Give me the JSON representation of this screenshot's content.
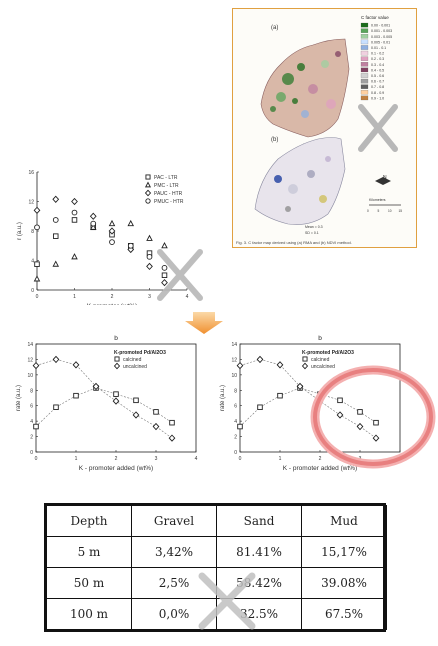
{
  "map_figure": {
    "panel_a": "(a)",
    "panel_b": "(b)",
    "legend_title": "C factor value",
    "legend_items": [
      "0.00 - 0.001",
      "0.001 - 0.003",
      "0.003 - 0.005",
      "0.005 - 0.01",
      "0.01 - 0.1",
      "0.1 - 0.2",
      "0.2 - 0.3",
      "0.3 - 0.4",
      "0.4 - 0.5",
      "0.5 - 0.6",
      "0.6 - 0.7",
      "0.7 - 0.8",
      "0.8 - 0.9",
      "0.9 - 1.0"
    ],
    "legend_colors": [
      "#1a6b1a",
      "#5aa55a",
      "#a0d0a0",
      "#c8e0ff",
      "#8fb0e0",
      "#f0d0e0",
      "#e0a0c0",
      "#c080a0",
      "#804060",
      "#d0d0d0",
      "#a0a0a0",
      "#606060",
      "#ffd0a0",
      "#c08040"
    ],
    "stats_a": [
      "Mean = 0.33",
      "SD = 0.18"
    ],
    "stats_b": [
      "Mean = 0.3",
      "SD = 0.1"
    ],
    "scale_label": "Kilometers",
    "scale_ticks": [
      "0",
      "5",
      "10",
      "15"
    ],
    "north": "N",
    "caption": "Fig. 3. C factor map derived using (a) RMA and (b) NDVI method."
  },
  "chart_data": [
    {
      "type": "scatter",
      "ylabel": "r (a.u.)",
      "xlabel": "K promoter (wt%)",
      "xlim": [
        0,
        4
      ],
      "ylim": [
        0,
        16
      ],
      "xticks": [
        "0",
        "1",
        "2",
        "3",
        "4"
      ],
      "yticks": [
        "0",
        "4",
        "8",
        "12",
        "16"
      ],
      "legend_position": "top-right",
      "series": [
        {
          "name": "PAC - LTR",
          "marker": "square",
          "x": [
            0,
            0.5,
            1.0,
            1.5,
            2.0,
            2.5,
            3.0,
            3.4
          ],
          "y": [
            3.5,
            7.3,
            9.5,
            8.5,
            7.5,
            6.0,
            5.0,
            2.0
          ]
        },
        {
          "name": "PMC - LTR",
          "marker": "triangle",
          "x": [
            0,
            0.5,
            1.0,
            1.5,
            2.0,
            2.5,
            3.0,
            3.4
          ],
          "y": [
            1.5,
            3.5,
            4.5,
            8.5,
            9.0,
            9.0,
            7.0,
            6.0
          ]
        },
        {
          "name": "PAUC - HTR",
          "marker": "diamond",
          "x": [
            0,
            0.5,
            1.0,
            1.5,
            2.0,
            2.5,
            3.0,
            3.4
          ],
          "y": [
            10.8,
            12.3,
            12.0,
            10.0,
            8.0,
            5.5,
            3.2,
            1.0
          ]
        },
        {
          "name": "PMUC - HTR",
          "marker": "circle",
          "x": [
            0,
            0.5,
            1.0,
            1.5,
            2.0,
            2.5,
            3.0,
            3.4
          ],
          "y": [
            8.5,
            9.5,
            10.5,
            9.0,
            6.5,
            6.0,
            4.5,
            3.0
          ]
        }
      ]
    },
    {
      "type": "scatter",
      "title": "b",
      "legend_title": "K-promoted Pd/Al2O3",
      "ylabel": "rate (a.u.)",
      "xlabel": "K - promoter added (wt%)",
      "xlim": [
        0,
        4
      ],
      "ylim": [
        0,
        14
      ],
      "xticks": [
        "0",
        "1",
        "2",
        "3",
        "4"
      ],
      "yticks": [
        "0",
        "2",
        "4",
        "6",
        "8",
        "10",
        "12",
        "14"
      ],
      "legend_position": "top-right",
      "series": [
        {
          "name": "calcined",
          "marker": "square",
          "x": [
            0,
            0.5,
            1.0,
            1.5,
            2.0,
            2.5,
            3.0,
            3.4
          ],
          "y": [
            3.3,
            5.8,
            7.3,
            8.3,
            7.5,
            6.7,
            5.2,
            3.8
          ]
        },
        {
          "name": "uncalcined",
          "marker": "diamond",
          "x": [
            0,
            0.5,
            1.0,
            1.5,
            2.0,
            2.5,
            3.0,
            3.4
          ],
          "y": [
            11.2,
            12.0,
            11.3,
            8.5,
            6.6,
            4.8,
            3.3,
            1.8
          ]
        }
      ]
    },
    {
      "type": "scatter",
      "title": "b",
      "legend_title": "K-promoted Pd/Al2O3",
      "ylabel": "rate (a.u.)",
      "xlabel": "K - promoter added (wt%)",
      "xlim": [
        0,
        4
      ],
      "ylim": [
        0,
        14
      ],
      "xticks": [
        "0",
        "1",
        "2",
        "3",
        "4"
      ],
      "yticks": [
        "0",
        "2",
        "4",
        "6",
        "8",
        "10",
        "12",
        "14"
      ],
      "legend_position": "top-right",
      "series": [
        {
          "name": "calcined",
          "marker": "square",
          "x": [
            0,
            0.5,
            1.0,
            1.5,
            2.0,
            2.5,
            3.0,
            3.4
          ],
          "y": [
            3.3,
            5.8,
            7.3,
            8.3,
            7.5,
            6.7,
            5.2,
            3.8
          ]
        },
        {
          "name": "uncalcined",
          "marker": "diamond",
          "x": [
            0,
            0.5,
            1.0,
            1.5,
            2.0,
            2.5,
            3.0,
            3.4
          ],
          "y": [
            11.2,
            12.0,
            11.3,
            8.5,
            6.6,
            4.8,
            3.3,
            1.8
          ]
        }
      ]
    }
  ],
  "table": {
    "headers": [
      "Depth",
      "Gravel",
      "Sand",
      "Mud"
    ],
    "rows": [
      [
        "5 m",
        "3,42%",
        "81.41%",
        "15,17%"
      ],
      [
        "50 m",
        "2,5%",
        "58.42%",
        "39.08%"
      ],
      [
        "100 m",
        "0,0%",
        "32.5%",
        "67.5%"
      ]
    ]
  },
  "colors": {
    "arrow": "#f0a030",
    "ring": "#e88080",
    "cross": "#b8b8b8"
  }
}
